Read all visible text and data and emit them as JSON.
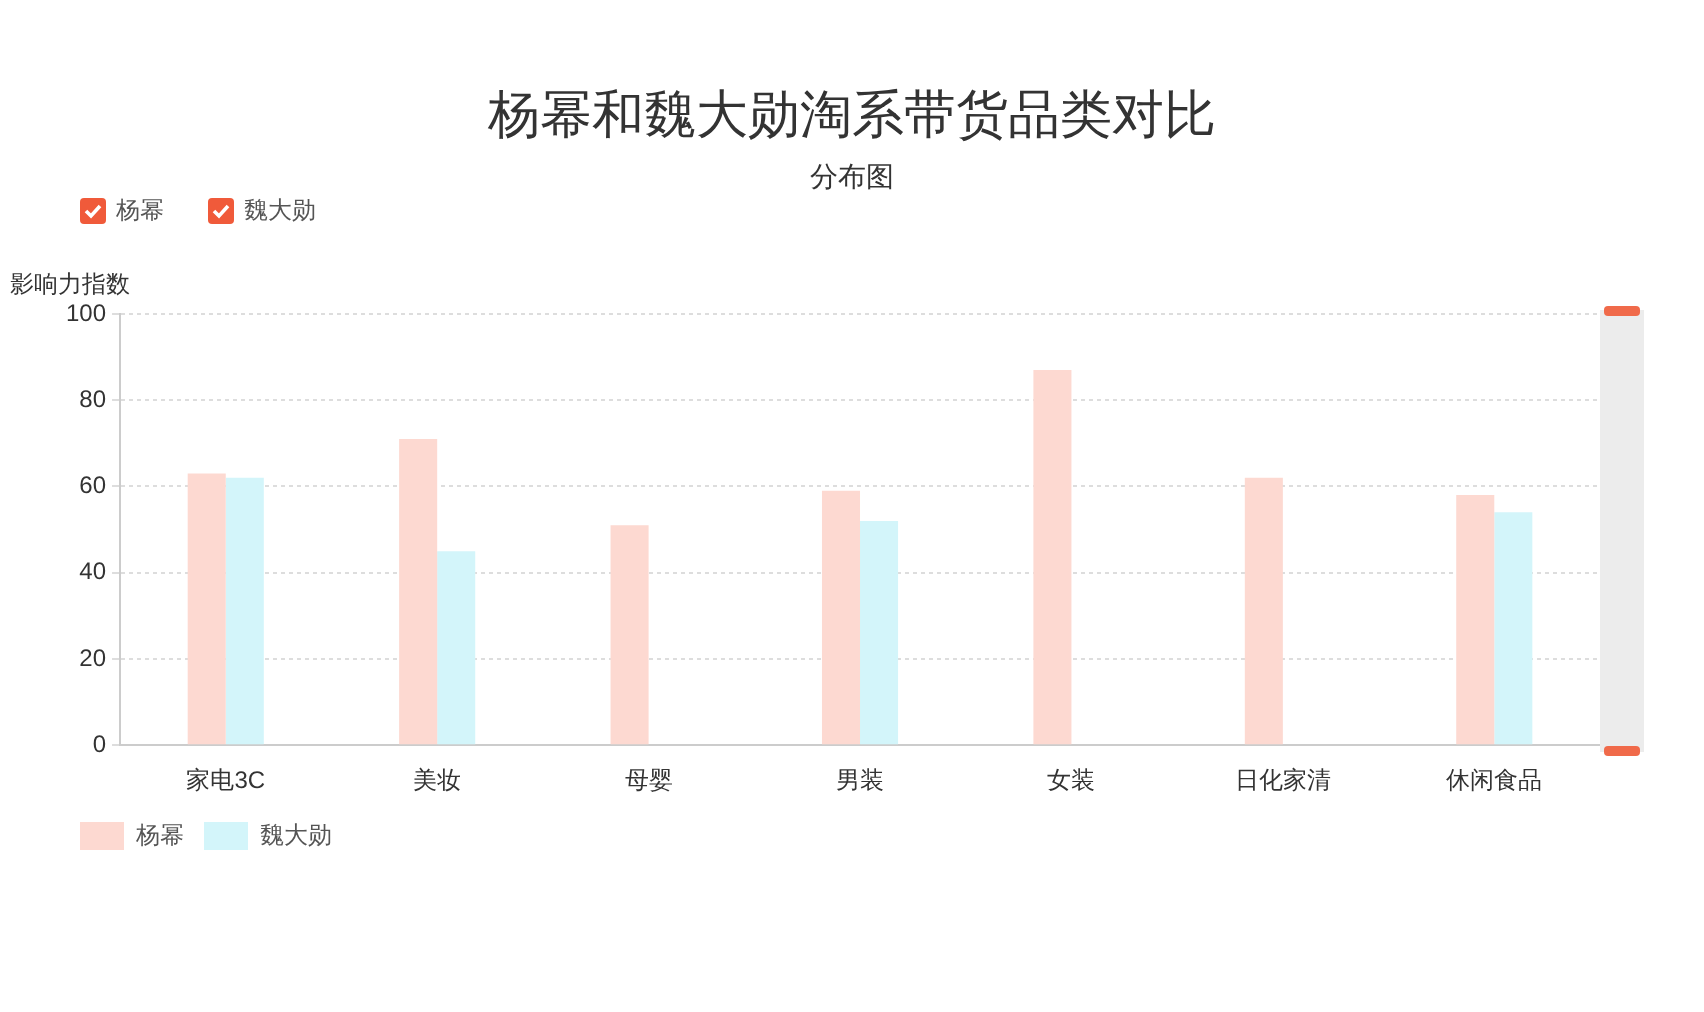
{
  "chart_data": {
    "type": "bar",
    "title": "杨幂和魏大勋淘系带货品类对比",
    "subtitle": "分布图",
    "ylabel": "影响力指数",
    "categories": [
      "家电3C",
      "美妆",
      "母婴",
      "男装",
      "女装",
      "日化家清",
      "休闲食品"
    ],
    "series": [
      {
        "name": "杨幂",
        "color": "#fdd9d1",
        "values": [
          63,
          71,
          51,
          59,
          87,
          62,
          58
        ]
      },
      {
        "name": "魏大勋",
        "color": "#d3f5fa",
        "values": [
          62,
          45,
          null,
          52,
          null,
          null,
          54
        ]
      }
    ],
    "ylim": [
      0,
      100
    ],
    "yticks": [
      0,
      20,
      40,
      60,
      80,
      100
    ],
    "grid": "y",
    "legend": "bottom left"
  }
}
